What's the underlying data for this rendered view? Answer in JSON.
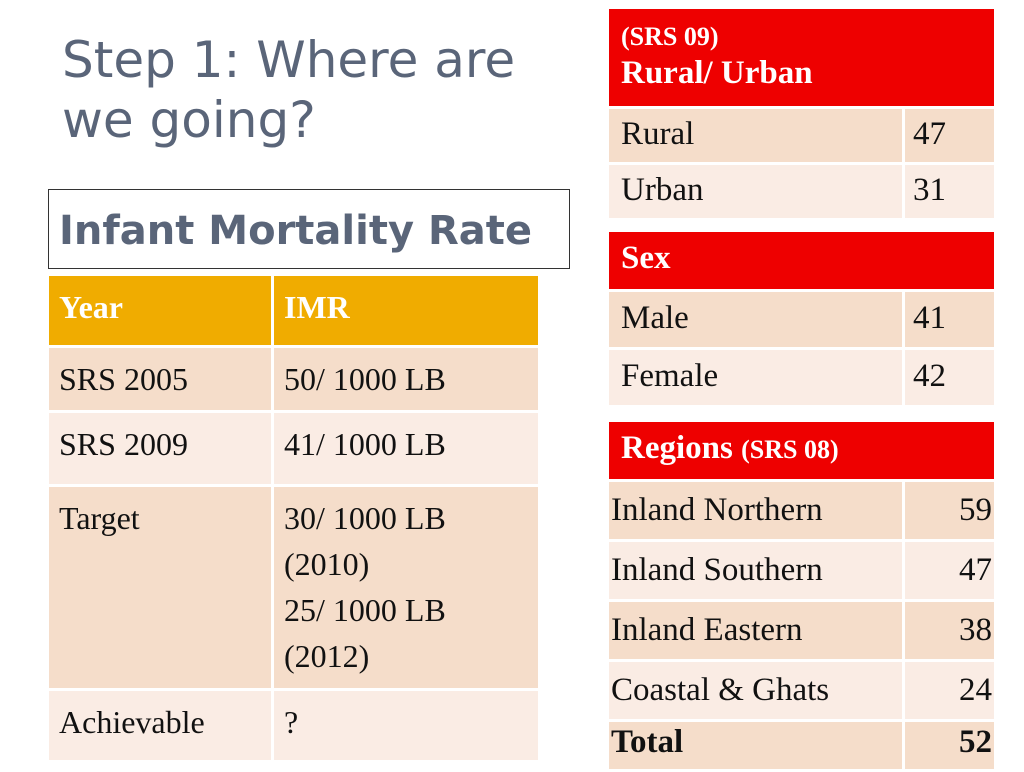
{
  "title": "Step 1: Where are we going?",
  "subtitle": "Infant Mortality Rate",
  "imr_table": {
    "headers": [
      "Year",
      "IMR"
    ],
    "rows": [
      {
        "year": "SRS 2005",
        "imr": "50/ 1000 LB"
      },
      {
        "year": "SRS 2009",
        "imr": "41/ 1000 LB"
      },
      {
        "year": "Target",
        "imr_lines": [
          "30/ 1000 LB",
          "(2010)",
          "25/ 1000 LB",
          "(2012)"
        ]
      },
      {
        "year": "Achievable",
        "imr": "?"
      }
    ]
  },
  "rural_urban": {
    "header_small": "(SRS 09)",
    "header": "Rural/ Urban",
    "rows": [
      {
        "label": "Rural",
        "value": "47"
      },
      {
        "label": "Urban",
        "value": "31"
      }
    ]
  },
  "sex": {
    "header": "Sex",
    "rows": [
      {
        "label": "Male",
        "value": "41"
      },
      {
        "label": "Female",
        "value": "42"
      }
    ]
  },
  "regions": {
    "header": "Regions",
    "header_small": "(SRS 08)",
    "rows": [
      {
        "label": "Inland Northern",
        "value": "59"
      },
      {
        "label": "Inland Southern",
        "value": "47"
      },
      {
        "label": "Inland Eastern",
        "value": "38"
      },
      {
        "label": "Coastal & Ghats",
        "value": "24"
      }
    ],
    "total_label": "Total",
    "total_value": "52"
  },
  "colors": {
    "title": "#5a6579",
    "imr_header": "#f0ac00",
    "red_header": "#ee0000",
    "row_dark": "#f5ddca",
    "row_light": "#faece4"
  }
}
